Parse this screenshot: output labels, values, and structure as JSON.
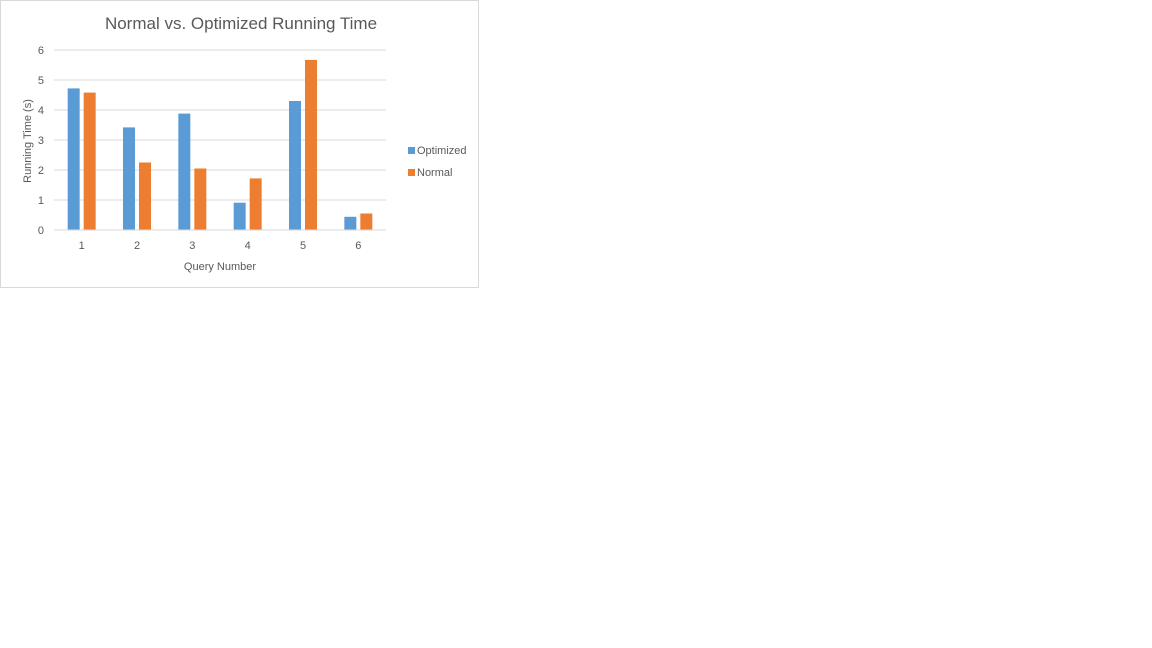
{
  "chart_data": {
    "type": "bar",
    "title": "Normal vs. Optimized Running Time",
    "xlabel": "Query Number",
    "ylabel": "Running Time (s)",
    "categories": [
      "1",
      "2",
      "3",
      "4",
      "5",
      "6"
    ],
    "series": [
      {
        "name": "Optimized",
        "color": "#5b9bd5",
        "values": [
          4.72,
          3.42,
          3.88,
          0.91,
          4.3,
          0.44
        ]
      },
      {
        "name": "Normal",
        "color": "#ed7d31",
        "values": [
          4.58,
          2.25,
          2.05,
          1.72,
          5.67,
          0.55
        ]
      }
    ],
    "ylim": [
      0,
      6
    ],
    "yticks": [
      "0",
      "1",
      "2",
      "3",
      "4",
      "5",
      "6"
    ],
    "grid": true,
    "legend_position": "right"
  }
}
